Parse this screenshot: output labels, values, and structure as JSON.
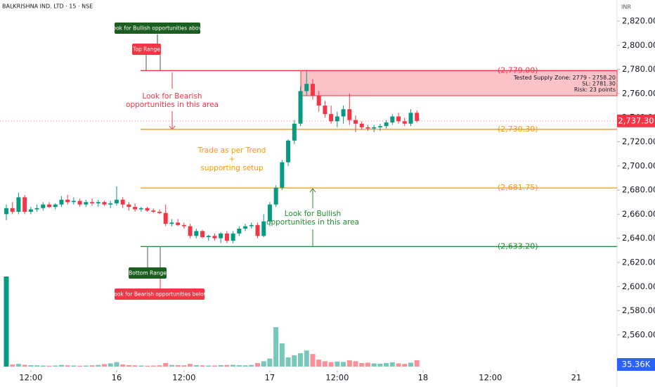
{
  "chart_data": {
    "type": "candlestick",
    "title": "BALKRISHNA IND. LTD · 15 · NSE",
    "currency": "INR",
    "up_color": "#089981",
    "down_color": "#f23645",
    "ylim": [
      2533.1,
      2837.5
    ],
    "yticks": [
      {
        "value": 2560,
        "label": "2,560.00"
      },
      {
        "value": 2580,
        "label": "2,580.00"
      },
      {
        "value": 2600,
        "label": "2,600.00"
      },
      {
        "value": 2620,
        "label": "2,620.00"
      },
      {
        "value": 2640,
        "label": "2,640.00"
      },
      {
        "value": 2660,
        "label": "2,660.00"
      },
      {
        "value": 2680,
        "label": "2,680.00"
      },
      {
        "value": 2700,
        "label": "2,700.00"
      },
      {
        "value": 2720,
        "label": "2,720.00"
      },
      {
        "value": 2740,
        "label": "2,740.00"
      },
      {
        "value": 2760,
        "label": "2,760.00"
      },
      {
        "value": 2780,
        "label": "2,780.00"
      },
      {
        "value": 2800,
        "label": "2,800.00"
      },
      {
        "value": 2820,
        "label": "2,820.00"
      }
    ],
    "xlim": [
      -1.03,
      99.66
    ],
    "xticks": [
      {
        "value": 4,
        "label": "12:00"
      },
      {
        "value": 18,
        "label": "16"
      },
      {
        "value": 29,
        "label": "12:00"
      },
      {
        "value": 43,
        "label": "17"
      },
      {
        "value": 54,
        "label": "12:00"
      },
      {
        "value": 68,
        "label": "18"
      },
      {
        "value": 79,
        "label": "12:00"
      },
      {
        "value": 93,
        "label": "21"
      }
    ],
    "open": [
      2660,
      2665,
      2662,
      2674,
      2662,
      2664,
      2665,
      2668,
      2666,
      2668,
      2672,
      2670,
      2671,
      2668,
      2670,
      2669,
      2670,
      2668,
      2669,
      2672,
      2668,
      2666,
      2664,
      2665,
      2663,
      2662,
      2661,
      2652,
      2653,
      2651,
      2650,
      2642,
      2646,
      2641,
      2642,
      2640,
      2644,
      2638,
      2644,
      2648,
      2650,
      2651,
      2642,
      2654,
      2668,
      2682,
      2703,
      2721,
      2735,
      2762,
      2768,
      2758,
      2750,
      2743,
      2737,
      2741,
      2747,
      2738,
      2735,
      2732,
      2731,
      2732,
      2733,
      2736,
      2741,
      2737,
      2735,
      2744
    ],
    "high": [
      2668,
      2670,
      2678,
      2676,
      2666,
      2668,
      2670,
      2670,
      2669,
      2675,
      2676,
      2674,
      2673,
      2672,
      2673,
      2672,
      2671,
      2671,
      2683,
      2674,
      2670,
      2669,
      2666,
      2666,
      2665,
      2664,
      2668,
      2656,
      2656,
      2653,
      2652,
      2648,
      2647,
      2643,
      2644,
      2645,
      2646,
      2646,
      2650,
      2652,
      2653,
      2653,
      2660,
      2670,
      2684,
      2705,
      2722,
      2738,
      2766,
      2779,
      2772,
      2762,
      2754,
      2750,
      2745,
      2750,
      2760,
      2742,
      2737,
      2734,
      2734,
      2735,
      2738,
      2743,
      2744,
      2740,
      2747,
      2746
    ],
    "low": [
      2655,
      2660,
      2660,
      2660,
      2660,
      2662,
      2663,
      2665,
      2664,
      2666,
      2668,
      2668,
      2666,
      2666,
      2667,
      2666,
      2667,
      2665,
      2667,
      2665,
      2663,
      2662,
      2662,
      2662,
      2661,
      2660,
      2650,
      2650,
      2650,
      2648,
      2640,
      2640,
      2640,
      2638,
      2638,
      2636,
      2636,
      2636,
      2642,
      2646,
      2648,
      2640,
      2641,
      2650,
      2666,
      2680,
      2700,
      2718,
      2733,
      2758,
      2755,
      2745,
      2740,
      2735,
      2732,
      2735,
      2734,
      2728,
      2730,
      2729,
      2728,
      2729,
      2731,
      2734,
      2735,
      2733,
      2733,
      2736
    ],
    "close": [
      2665,
      2662,
      2674,
      2662,
      2664,
      2665,
      2668,
      2666,
      2668,
      2672,
      2670,
      2671,
      2668,
      2670,
      2669,
      2670,
      2668,
      2669,
      2672,
      2668,
      2666,
      2664,
      2665,
      2663,
      2662,
      2661,
      2652,
      2653,
      2651,
      2650,
      2642,
      2646,
      2641,
      2642,
      2640,
      2644,
      2638,
      2644,
      2648,
      2650,
      2651,
      2642,
      2654,
      2668,
      2682,
      2703,
      2721,
      2735,
      2762,
      2768,
      2758,
      2750,
      2743,
      2737,
      2741,
      2747,
      2738,
      2735,
      2732,
      2731,
      2732,
      2733,
      2736,
      2741,
      2737,
      2735,
      2744,
      2737.3
    ],
    "volume": [
      503000,
      12000,
      15000,
      10000,
      8000,
      7000,
      6000,
      5000,
      6000,
      9000,
      7000,
      6000,
      5000,
      6000,
      7000,
      9000,
      14000,
      18000,
      25000,
      12000,
      8000,
      7000,
      6000,
      5000,
      6000,
      7000,
      20000,
      9000,
      8000,
      7000,
      15000,
      8000,
      7000,
      6000,
      6000,
      8000,
      9000,
      10000,
      8000,
      7000,
      9000,
      20000,
      30000,
      45000,
      220000,
      130000,
      51000,
      63000,
      75000,
      90000,
      70000,
      39000,
      30000,
      25000,
      28000,
      26000,
      35000,
      30000,
      20000,
      22000,
      18000,
      16000,
      20000,
      24000,
      18000,
      15000,
      22000,
      35360
    ],
    "volume_label": "35.36K",
    "last_price": {
      "value": 2737.3,
      "label": "2,737.30"
    },
    "levels": [
      {
        "value": 2779,
        "label": "(2,779.00)",
        "color": "#f23645"
      },
      {
        "value": 2730.3,
        "label": "(2,730.30)",
        "color": "#ff9800"
      },
      {
        "value": 2681.75,
        "label": "(2,681.75)",
        "color": "#ff9800"
      },
      {
        "value": 2633.2,
        "label": "(2,633.20)",
        "color": "#1e8c2f"
      }
    ],
    "supply_zone": {
      "top": 2779,
      "bottom": 2758.2,
      "lines": [
        "Tested Supply Zone: 2779 - 2758.20",
        "SL: 2781.30",
        "Risk: 23 points"
      ]
    },
    "tags": [
      {
        "text": "Look for Bullish opportunities above",
        "color": "#1b5e20"
      },
      {
        "text": "Top Range",
        "color": "#f23645"
      },
      {
        "text": "Bottom Range",
        "color": "#1b5e20"
      },
      {
        "text": "Look for Bearish opportunities below",
        "color": "#f23645"
      }
    ],
    "notes": [
      {
        "lines": [
          "Look for Bearish",
          "opportunities in this area"
        ],
        "color": "#f23645"
      },
      {
        "lines": [
          "Trade as per Trend",
          "+",
          "supporting setup"
        ],
        "color": "#ff9800"
      },
      {
        "lines": [
          "Look for Bullish",
          "opportunities in this area"
        ],
        "color": "#1e8c2f"
      }
    ]
  }
}
